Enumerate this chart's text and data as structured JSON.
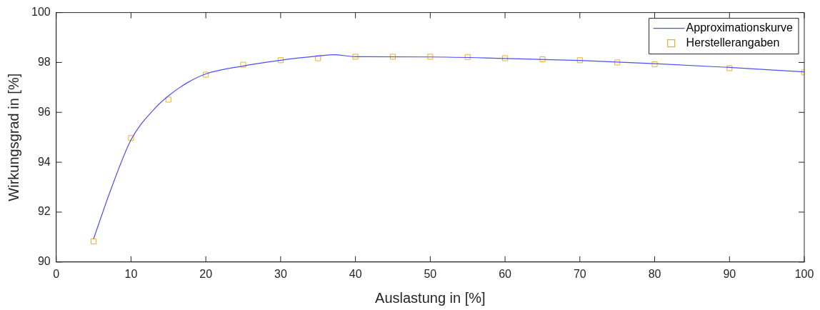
{
  "chart_data": {
    "type": "line",
    "xlabel": "Auslastung in [%]",
    "ylabel": "Wirkungsgrad in [%]",
    "xlim": [
      0,
      100
    ],
    "xticks": [
      0,
      10,
      20,
      30,
      40,
      50,
      60,
      70,
      80,
      90,
      100
    ],
    "ylim": [
      90,
      100
    ],
    "yticks": [
      90,
      92,
      94,
      96,
      98,
      100
    ],
    "grid": false,
    "legend": "top right",
    "series": [
      {
        "name": "Approximationskurve",
        "color": "#4d4dff",
        "marker": "none",
        "x": [
          5,
          7.3,
          10,
          13,
          15,
          17.6,
          20,
          25,
          30,
          35,
          37.1,
          40,
          50,
          60,
          70,
          80,
          90,
          100
        ],
        "values": [
          90.93,
          92.9,
          94.9,
          96.1,
          96.66,
          97.2,
          97.54,
          97.86,
          98.09,
          98.26,
          98.31,
          98.23,
          98.22,
          98.16,
          98.08,
          97.95,
          97.8,
          97.62
        ]
      },
      {
        "name": "Herstellerangaben",
        "type": "scatter",
        "color": "#edb120",
        "marker": "square",
        "x": [
          5,
          10,
          15,
          20,
          25,
          30,
          35,
          40,
          45,
          50,
          55,
          60,
          65,
          70,
          75,
          80,
          90,
          100
        ],
        "values": [
          90.83,
          94.97,
          96.51,
          97.51,
          97.91,
          98.09,
          98.17,
          98.23,
          98.23,
          98.23,
          98.22,
          98.17,
          98.13,
          98.09,
          98.0,
          97.93,
          97.77,
          97.6
        ]
      }
    ]
  }
}
